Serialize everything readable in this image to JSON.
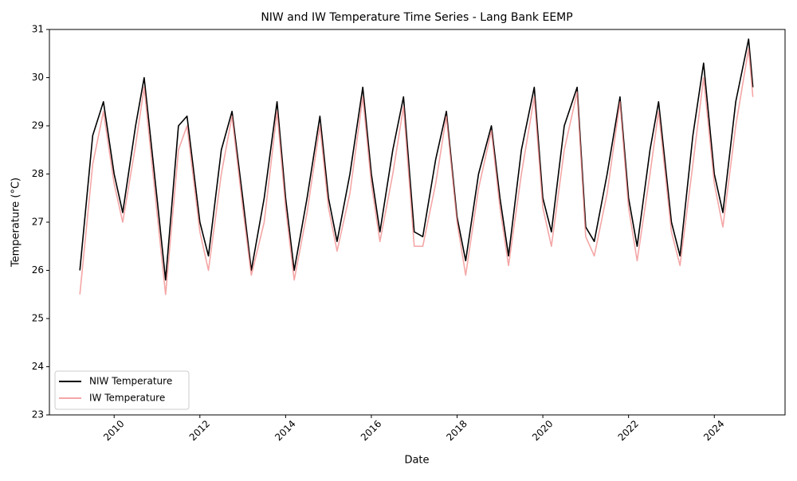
{
  "chart_data": {
    "type": "line",
    "title": "NIW and IW Temperature Time Series - Lang Bank EEMP",
    "x_label": "Date",
    "y_label": "Temperature (°C)",
    "x": [
      2009.2,
      2009.5,
      2009.75,
      2010.0,
      2010.2,
      2010.5,
      2010.7,
      2011.0,
      2011.2,
      2011.5,
      2011.7,
      2012.0,
      2012.2,
      2012.5,
      2012.75,
      2013.0,
      2013.2,
      2013.5,
      2013.8,
      2014.0,
      2014.2,
      2014.5,
      2014.8,
      2015.0,
      2015.2,
      2015.5,
      2015.8,
      2016.0,
      2016.2,
      2016.5,
      2016.75,
      2017.0,
      2017.2,
      2017.5,
      2017.75,
      2018.0,
      2018.2,
      2018.5,
      2018.8,
      2019.0,
      2019.2,
      2019.5,
      2019.8,
      2020.0,
      2020.2,
      2020.5,
      2020.8,
      2021.0,
      2021.2,
      2021.5,
      2021.8,
      2022.0,
      2022.2,
      2022.5,
      2022.7,
      2023.0,
      2023.2,
      2023.5,
      2023.75,
      2024.0,
      2024.2,
      2024.5,
      2024.8,
      2024.9
    ],
    "series": [
      {
        "name": "NIW Temperature",
        "color": "#000000",
        "opacity": 1,
        "values": [
          26.0,
          28.8,
          29.5,
          28.0,
          27.2,
          29.0,
          30.0,
          27.5,
          25.8,
          29.0,
          29.2,
          27.0,
          26.3,
          28.5,
          29.3,
          27.5,
          26.0,
          27.5,
          29.5,
          27.5,
          26.0,
          27.5,
          29.2,
          27.5,
          26.6,
          28.0,
          29.8,
          28.0,
          26.8,
          28.5,
          29.6,
          26.8,
          26.7,
          28.3,
          29.3,
          27.1,
          26.2,
          28.0,
          29.0,
          27.5,
          26.3,
          28.5,
          29.8,
          27.5,
          26.8,
          29.0,
          29.8,
          26.9,
          26.6,
          28.0,
          29.6,
          27.5,
          26.5,
          28.5,
          29.5,
          27.0,
          26.3,
          28.8,
          30.3,
          28.0,
          27.2,
          29.5,
          30.8,
          29.8
        ]
      },
      {
        "name": "IW Temperature",
        "color": "#f08080",
        "opacity": 0.7,
        "values": [
          25.5,
          28.2,
          29.3,
          27.8,
          27.0,
          28.6,
          29.8,
          27.2,
          25.5,
          28.5,
          29.0,
          26.8,
          26.0,
          28.0,
          29.2,
          27.3,
          25.9,
          27.0,
          29.3,
          27.3,
          25.8,
          27.2,
          29.0,
          27.3,
          26.4,
          27.6,
          29.6,
          27.8,
          26.6,
          28.0,
          29.4,
          26.5,
          26.5,
          27.8,
          29.2,
          27.0,
          25.9,
          27.7,
          28.9,
          27.3,
          26.1,
          28.0,
          29.6,
          27.3,
          26.5,
          28.5,
          29.7,
          26.7,
          26.3,
          27.6,
          29.5,
          27.3,
          26.2,
          28.0,
          29.3,
          26.8,
          26.1,
          28.2,
          30.0,
          27.8,
          26.9,
          29.0,
          30.6,
          29.6
        ]
      }
    ],
    "xlim": [
      2008.49,
      2025.65
    ],
    "xticks": [
      2010,
      2012,
      2014,
      2016,
      2018,
      2020,
      2022,
      2024
    ],
    "ylim": [
      23,
      31
    ],
    "yticks": [
      23,
      24,
      25,
      26,
      27,
      28,
      29,
      30,
      31
    ],
    "legend": "lower left",
    "grid": false
  }
}
